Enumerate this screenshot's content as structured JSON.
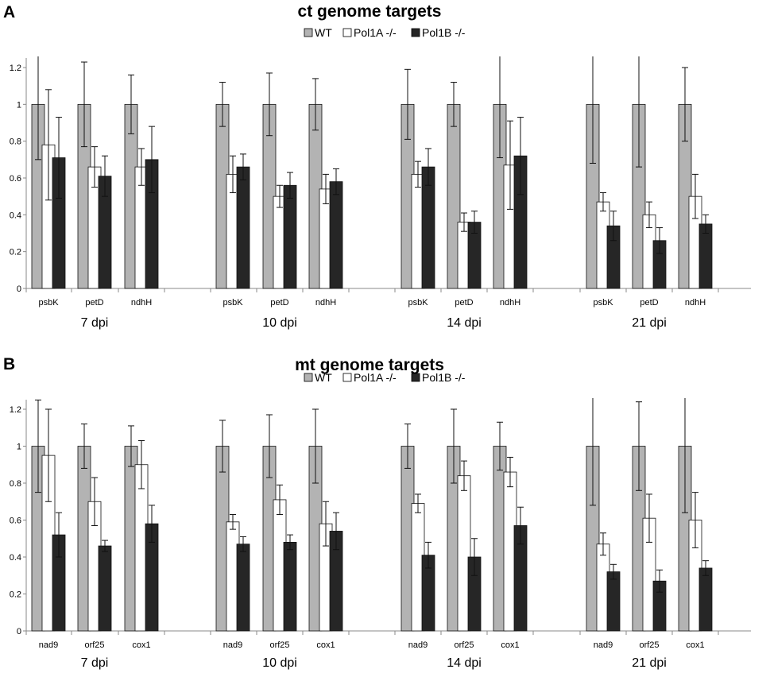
{
  "chart_data": [
    {
      "panel": "A",
      "type": "bar",
      "title": "ct genome targets",
      "legend": [
        "WT",
        "Pol1A -/-",
        "Pol1B -/-"
      ],
      "colors": {
        "WT": "#b3b3b3",
        "Pol1A -/-": "#ffffff",
        "Pol1B -/-": "#262626"
      },
      "ylim": [
        0,
        1.2
      ],
      "yticks": [
        "0",
        "0.2",
        "0.4",
        "0.6",
        "0.8",
        "1",
        "1.2"
      ],
      "groups": [
        {
          "label": "7 dpi",
          "genes": [
            {
              "name": "psbK",
              "values": [
                1.0,
                0.78,
                0.71
              ],
              "errors": [
                0.3,
                0.3,
                0.22
              ]
            },
            {
              "name": "petD",
              "values": [
                1.0,
                0.66,
                0.61
              ],
              "errors": [
                0.23,
                0.11,
                0.11
              ]
            },
            {
              "name": "ndhH",
              "values": [
                1.0,
                0.66,
                0.7
              ],
              "errors": [
                0.16,
                0.1,
                0.18
              ]
            }
          ]
        },
        {
          "label": "10 dpi",
          "genes": [
            {
              "name": "psbK",
              "values": [
                1.0,
                0.62,
                0.66
              ],
              "errors": [
                0.12,
                0.1,
                0.07
              ]
            },
            {
              "name": "petD",
              "values": [
                1.0,
                0.5,
                0.56
              ],
              "errors": [
                0.17,
                0.06,
                0.07
              ]
            },
            {
              "name": "ndhH",
              "values": [
                1.0,
                0.54,
                0.58
              ],
              "errors": [
                0.14,
                0.08,
                0.07
              ]
            }
          ]
        },
        {
          "label": "14 dpi",
          "genes": [
            {
              "name": "psbK",
              "values": [
                1.0,
                0.62,
                0.66
              ],
              "errors": [
                0.19,
                0.07,
                0.1
              ]
            },
            {
              "name": "petD",
              "values": [
                1.0,
                0.36,
                0.36
              ],
              "errors": [
                0.12,
                0.05,
                0.06
              ]
            },
            {
              "name": "ndhH",
              "values": [
                1.0,
                0.67,
                0.72
              ],
              "errors": [
                0.29,
                0.24,
                0.21
              ]
            }
          ]
        },
        {
          "label": "21 dpi",
          "genes": [
            {
              "name": "psbK",
              "values": [
                1.0,
                0.47,
                0.34
              ],
              "errors": [
                0.32,
                0.05,
                0.08
              ]
            },
            {
              "name": "petD",
              "values": [
                1.0,
                0.4,
                0.26
              ],
              "errors": [
                0.34,
                0.07,
                0.07
              ]
            },
            {
              "name": "ndhH",
              "values": [
                1.0,
                0.5,
                0.35
              ],
              "errors": [
                0.2,
                0.12,
                0.05
              ]
            }
          ]
        }
      ]
    },
    {
      "panel": "B",
      "type": "bar",
      "title": "mt genome targets",
      "legend": [
        "WT",
        "Pol1A -/-",
        "Pol1B -/-"
      ],
      "colors": {
        "WT": "#b3b3b3",
        "Pol1A -/-": "#ffffff",
        "Pol1B -/-": "#262626"
      },
      "ylim": [
        0,
        1.2
      ],
      "yticks": [
        "0",
        "0.2",
        "0.4",
        "0.6",
        "0.8",
        "1",
        "1.2"
      ],
      "groups": [
        {
          "label": "7 dpi",
          "genes": [
            {
              "name": "nad9",
              "values": [
                1.0,
                0.95,
                0.52
              ],
              "errors": [
                0.25,
                0.25,
                0.12
              ]
            },
            {
              "name": "orf25",
              "values": [
                1.0,
                0.7,
                0.46
              ],
              "errors": [
                0.12,
                0.13,
                0.03
              ]
            },
            {
              "name": "cox1",
              "values": [
                1.0,
                0.9,
                0.58
              ],
              "errors": [
                0.11,
                0.13,
                0.1
              ]
            }
          ]
        },
        {
          "label": "10 dpi",
          "genes": [
            {
              "name": "nad9",
              "values": [
                1.0,
                0.59,
                0.47
              ],
              "errors": [
                0.14,
                0.04,
                0.04
              ]
            },
            {
              "name": "orf25",
              "values": [
                1.0,
                0.71,
                0.48
              ],
              "errors": [
                0.17,
                0.08,
                0.04
              ]
            },
            {
              "name": "cox1",
              "values": [
                1.0,
                0.58,
                0.54
              ],
              "errors": [
                0.2,
                0.12,
                0.1
              ]
            }
          ]
        },
        {
          "label": "14 dpi",
          "genes": [
            {
              "name": "nad9",
              "values": [
                1.0,
                0.69,
                0.41
              ],
              "errors": [
                0.12,
                0.05,
                0.07
              ]
            },
            {
              "name": "orf25",
              "values": [
                1.0,
                0.84,
                0.4
              ],
              "errors": [
                0.2,
                0.08,
                0.1
              ]
            },
            {
              "name": "cox1",
              "values": [
                1.0,
                0.86,
                0.57
              ],
              "errors": [
                0.13,
                0.08,
                0.1
              ]
            }
          ]
        },
        {
          "label": "21 dpi",
          "genes": [
            {
              "name": "nad9",
              "values": [
                1.0,
                0.47,
                0.32
              ],
              "errors": [
                0.32,
                0.06,
                0.04
              ]
            },
            {
              "name": "orf25",
              "values": [
                1.0,
                0.61,
                0.27
              ],
              "errors": [
                0.24,
                0.13,
                0.06
              ]
            },
            {
              "name": "cox1",
              "values": [
                1.0,
                0.6,
                0.34
              ],
              "errors": [
                0.36,
                0.15,
                0.04
              ]
            }
          ]
        }
      ]
    }
  ]
}
